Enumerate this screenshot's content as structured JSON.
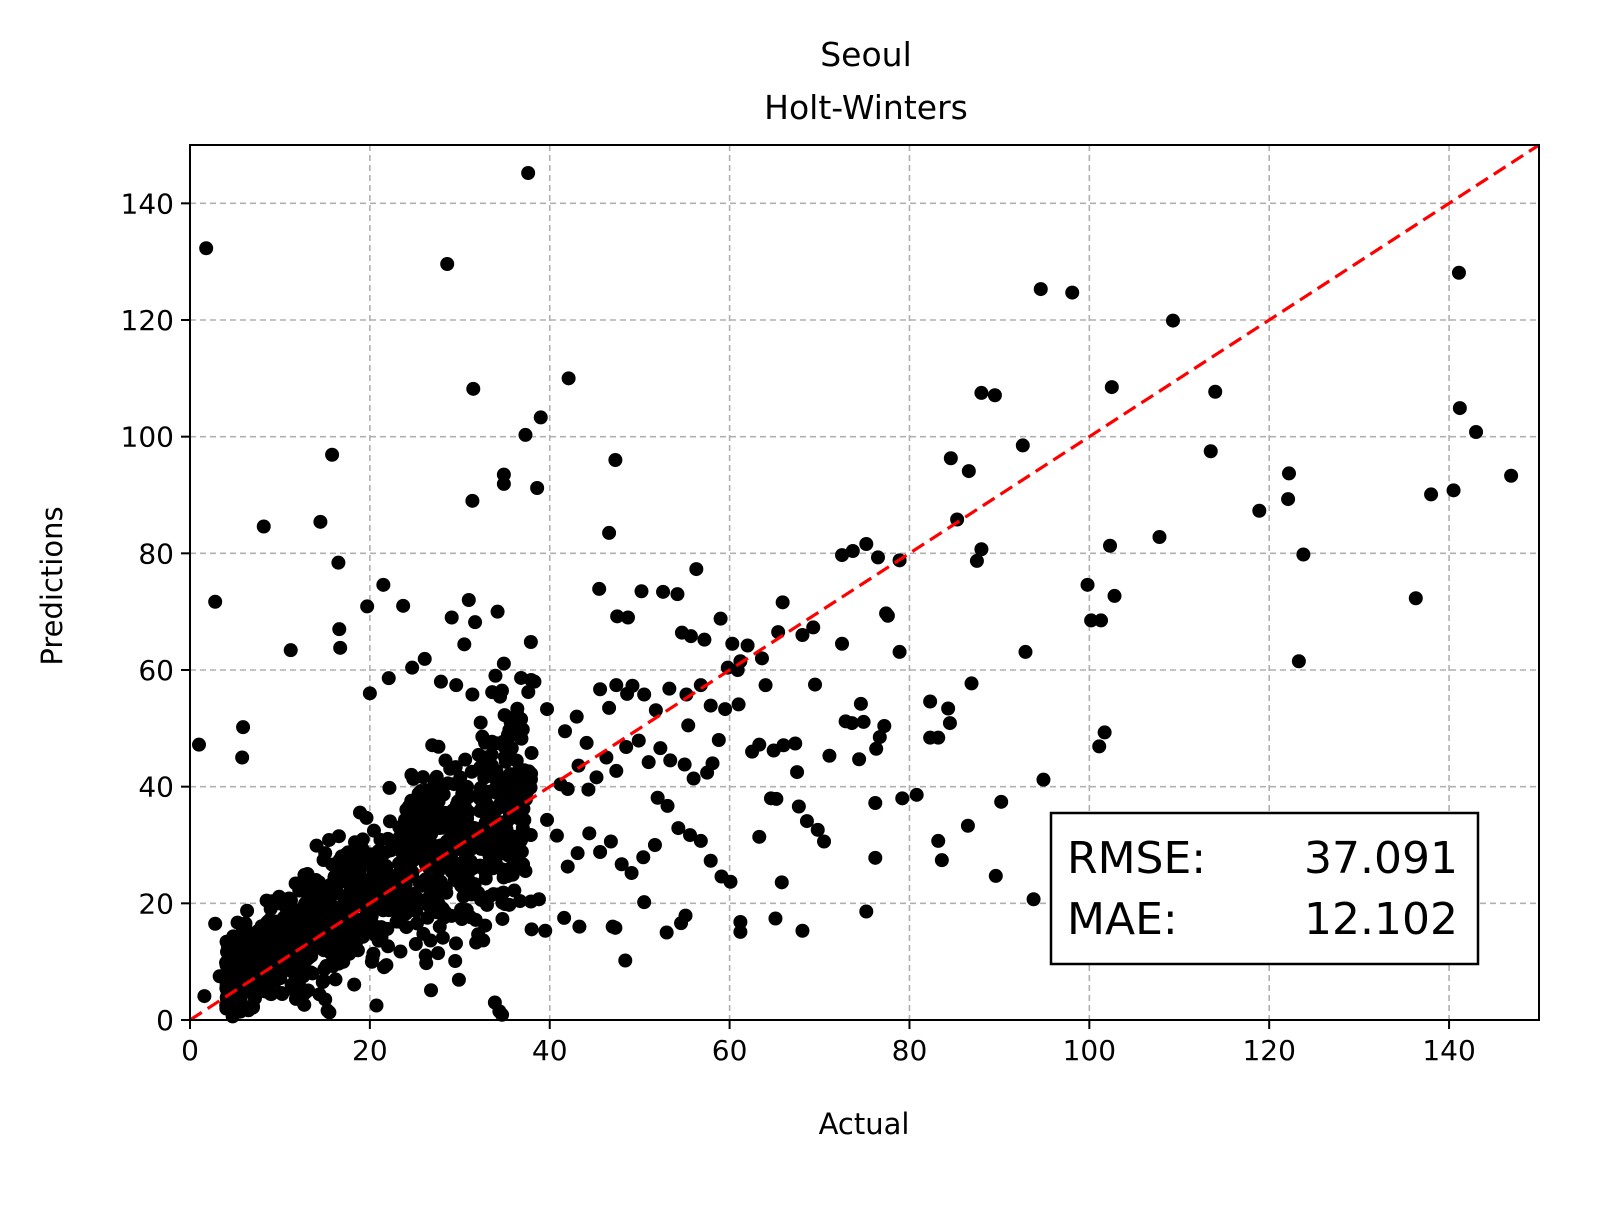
{
  "chart_data": {
    "type": "scatter",
    "title": "Seoul",
    "subtitle": "Holt-Winters",
    "xlabel": "Actual",
    "ylabel": "Predictions",
    "xlim": [
      0,
      150
    ],
    "ylim": [
      0,
      150
    ],
    "xticks": [
      0,
      20,
      40,
      60,
      80,
      100,
      120,
      140
    ],
    "yticks": [
      0,
      20,
      40,
      60,
      80,
      100,
      120,
      140
    ],
    "grid": true,
    "point_color": "#000000",
    "reference_line": {
      "from": [
        0,
        0
      ],
      "to": [
        150,
        150
      ],
      "color": "#ff0000",
      "style": "dashed"
    },
    "metrics": {
      "rmse_label": "RMSE:",
      "rmse_value": "37.091",
      "mae_label": "MAE:",
      "mae_value": "12.102"
    },
    "cluster": {
      "x_range": [
        4,
        38
      ],
      "count": 1100
    },
    "points": [
      [
        1.8,
        132.3
      ],
      [
        37.6,
        145.2
      ],
      [
        28.6,
        129.6
      ],
      [
        2.8,
        71.7
      ],
      [
        8.2,
        84.6
      ],
      [
        14.5,
        85.4
      ],
      [
        15.8,
        96.9
      ],
      [
        16.5,
        78.4
      ],
      [
        16.6,
        67.0
      ],
      [
        16.7,
        63.8
      ],
      [
        11.2,
        63.4
      ],
      [
        1.0,
        47.2
      ],
      [
        5.9,
        50.2
      ],
      [
        5.8,
        45.0
      ],
      [
        19.7,
        70.9
      ],
      [
        21.5,
        74.6
      ],
      [
        23.7,
        71.0
      ],
      [
        31.5,
        108.2
      ],
      [
        31.4,
        89.0
      ],
      [
        34.9,
        93.5
      ],
      [
        34.9,
        91.9
      ],
      [
        37.3,
        100.3
      ],
      [
        38.6,
        91.2
      ],
      [
        39.0,
        103.3
      ],
      [
        42.1,
        110.0
      ],
      [
        47.3,
        96.0
      ],
      [
        46.6,
        83.5
      ],
      [
        29.1,
        69.0
      ],
      [
        31.0,
        72.0
      ],
      [
        31.7,
        68.2
      ],
      [
        34.2,
        70.0
      ],
      [
        34.9,
        61.1
      ],
      [
        38.3,
        58.0
      ],
      [
        37.9,
        64.8
      ],
      [
        45.5,
        73.9
      ],
      [
        47.5,
        69.2
      ],
      [
        48.7,
        69.0
      ],
      [
        50.2,
        73.5
      ],
      [
        52.6,
        73.4
      ],
      [
        54.2,
        73.0
      ],
      [
        56.3,
        77.3
      ],
      [
        54.7,
        66.4
      ],
      [
        55.7,
        65.8
      ],
      [
        57.2,
        65.2
      ],
      [
        59.0,
        68.8
      ],
      [
        60.3,
        64.5
      ],
      [
        61.2,
        61.5
      ],
      [
        62.0,
        64.2
      ],
      [
        63.6,
        62.0
      ],
      [
        64.0,
        57.4
      ],
      [
        65.4,
        66.5
      ],
      [
        65.9,
        71.6
      ],
      [
        68.1,
        66.0
      ],
      [
        69.3,
        67.3
      ],
      [
        69.5,
        57.5
      ],
      [
        72.5,
        79.7
      ],
      [
        73.7,
        80.4
      ],
      [
        75.2,
        81.6
      ],
      [
        76.5,
        79.3
      ],
      [
        78.9,
        78.8
      ],
      [
        77.4,
        69.7
      ],
      [
        77.6,
        69.3
      ],
      [
        78.9,
        63.1
      ],
      [
        72.5,
        64.5
      ],
      [
        72.9,
        51.2
      ],
      [
        73.6,
        50.9
      ],
      [
        74.6,
        54.2
      ],
      [
        74.9,
        51.1
      ],
      [
        77.2,
        50.4
      ],
      [
        76.3,
        46.5
      ],
      [
        76.7,
        48.5
      ],
      [
        74.4,
        44.7
      ],
      [
        71.1,
        45.3
      ],
      [
        76.2,
        37.2
      ],
      [
        79.2,
        38.0
      ],
      [
        80.8,
        38.6
      ],
      [
        82.3,
        54.6
      ],
      [
        82.3,
        48.4
      ],
      [
        83.2,
        48.4
      ],
      [
        84.3,
        53.4
      ],
      [
        84.5,
        50.9
      ],
      [
        83.2,
        30.7
      ],
      [
        83.6,
        27.4
      ],
      [
        84.6,
        96.3
      ],
      [
        85.3,
        85.8
      ],
      [
        86.6,
        94.1
      ],
      [
        88.0,
        107.5
      ],
      [
        89.5,
        107.1
      ],
      [
        87.5,
        78.7
      ],
      [
        88.0,
        80.7
      ],
      [
        86.9,
        57.7
      ],
      [
        92.6,
        98.5
      ],
      [
        94.6,
        125.3
      ],
      [
        98.1,
        124.7
      ],
      [
        92.9,
        63.1
      ],
      [
        94.9,
        41.2
      ],
      [
        90.2,
        37.4
      ],
      [
        89.6,
        24.7
      ],
      [
        86.5,
        33.3
      ],
      [
        93.8,
        20.7
      ],
      [
        76.2,
        27.8
      ],
      [
        75.2,
        18.6
      ],
      [
        68.1,
        15.3
      ],
      [
        65.1,
        17.4
      ],
      [
        65.8,
        23.6
      ],
      [
        64.6,
        38.0
      ],
      [
        65.2,
        37.9
      ],
      [
        67.5,
        42.5
      ],
      [
        67.7,
        36.6
      ],
      [
        68.6,
        34.1
      ],
      [
        69.8,
        32.6
      ],
      [
        70.5,
        30.6
      ],
      [
        63.3,
        31.4
      ],
      [
        61.2,
        16.8
      ],
      [
        61.2,
        15.1
      ],
      [
        55.1,
        17.9
      ],
      [
        54.6,
        16.6
      ],
      [
        53.0,
        15.0
      ],
      [
        50.5,
        20.2
      ],
      [
        48.4,
        10.2
      ],
      [
        47.0,
        16.0
      ],
      [
        47.3,
        15.8
      ],
      [
        102.5,
        108.5
      ],
      [
        109.3,
        119.9
      ],
      [
        113.5,
        97.5
      ],
      [
        114.0,
        107.7
      ],
      [
        107.8,
        82.8
      ],
      [
        99.8,
        74.6
      ],
      [
        100.2,
        68.5
      ],
      [
        101.3,
        68.5
      ],
      [
        102.3,
        81.3
      ],
      [
        102.8,
        72.7
      ],
      [
        101.1,
        46.9
      ],
      [
        101.7,
        49.3
      ],
      [
        118.9,
        87.3
      ],
      [
        122.1,
        89.3
      ],
      [
        122.2,
        93.7
      ],
      [
        123.3,
        61.5
      ],
      [
        123.8,
        79.8
      ],
      [
        136.3,
        72.3
      ],
      [
        138.0,
        90.1
      ],
      [
        140.5,
        90.8
      ],
      [
        141.1,
        128.1
      ],
      [
        141.2,
        104.9
      ],
      [
        143.0,
        100.8
      ],
      [
        146.9,
        93.3
      ],
      [
        33.9,
        3.0
      ],
      [
        34.4,
        1.5
      ],
      [
        34.7,
        0.9
      ],
      [
        15.3,
        1.6
      ],
      [
        15.5,
        1.3
      ],
      [
        26.8,
        5.1
      ],
      [
        29.9,
        6.9
      ],
      [
        2.8,
        16.5
      ],
      [
        1.6,
        4.1
      ],
      [
        3.3,
        7.5
      ],
      [
        5.8,
        9.3
      ],
      [
        20.0,
        56.0
      ],
      [
        22.1,
        58.6
      ],
      [
        24.7,
        60.4
      ],
      [
        26.1,
        61.9
      ],
      [
        27.9,
        58.0
      ],
      [
        29.6,
        57.4
      ],
      [
        31.4,
        55.8
      ],
      [
        30.5,
        64.4
      ],
      [
        33.6,
        56.2
      ],
      [
        35.8,
        50.0
      ],
      [
        37.0,
        49.8
      ],
      [
        39.7,
        53.3
      ],
      [
        41.7,
        49.5
      ],
      [
        43.0,
        52.0
      ],
      [
        44.1,
        47.5
      ],
      [
        45.6,
        56.7
      ],
      [
        46.6,
        53.5
      ],
      [
        47.4,
        57.4
      ],
      [
        48.6,
        55.9
      ],
      [
        49.2,
        57.3
      ],
      [
        50.5,
        55.8
      ],
      [
        51.8,
        53.1
      ],
      [
        53.3,
        56.8
      ],
      [
        55.2,
        55.8
      ],
      [
        56.8,
        57.4
      ],
      [
        57.9,
        53.9
      ],
      [
        59.5,
        53.3
      ],
      [
        61.0,
        54.1
      ],
      [
        62.5,
        46.0
      ],
      [
        63.3,
        47.2
      ],
      [
        64.9,
        46.2
      ],
      [
        66.0,
        47.1
      ],
      [
        67.3,
        47.4
      ],
      [
        58.1,
        44.0
      ],
      [
        57.5,
        42.4
      ],
      [
        56.0,
        41.4
      ],
      [
        55.0,
        43.8
      ],
      [
        53.4,
        44.5
      ],
      [
        52.3,
        46.6
      ],
      [
        51.0,
        44.2
      ],
      [
        49.9,
        47.9
      ],
      [
        48.5,
        46.8
      ],
      [
        47.4,
        42.7
      ],
      [
        46.3,
        45.0
      ],
      [
        45.2,
        41.6
      ],
      [
        44.3,
        39.5
      ],
      [
        43.2,
        43.6
      ],
      [
        42.0,
        39.6
      ],
      [
        41.2,
        40.4
      ],
      [
        52.0,
        38.1
      ],
      [
        53.1,
        36.7
      ],
      [
        54.3,
        32.9
      ],
      [
        55.6,
        31.7
      ],
      [
        56.8,
        30.7
      ],
      [
        57.9,
        27.3
      ],
      [
        59.1,
        24.6
      ],
      [
        60.1,
        23.7
      ],
      [
        51.7,
        30.0
      ],
      [
        50.4,
        27.9
      ],
      [
        49.1,
        25.2
      ],
      [
        48.0,
        26.7
      ],
      [
        46.8,
        30.6
      ],
      [
        45.6,
        28.8
      ],
      [
        44.4,
        32.0
      ],
      [
        43.1,
        28.6
      ],
      [
        42.0,
        26.3
      ],
      [
        40.8,
        31.6
      ],
      [
        39.7,
        34.3
      ],
      [
        41.6,
        17.5
      ],
      [
        43.3,
        16.0
      ],
      [
        38.8,
        20.7
      ],
      [
        39.5,
        15.3
      ],
      [
        59.8,
        60.4
      ],
      [
        60.9,
        60.0
      ],
      [
        55.4,
        50.5
      ],
      [
        58.8,
        48.0
      ]
    ]
  },
  "page": {
    "background": "#ffffff"
  }
}
